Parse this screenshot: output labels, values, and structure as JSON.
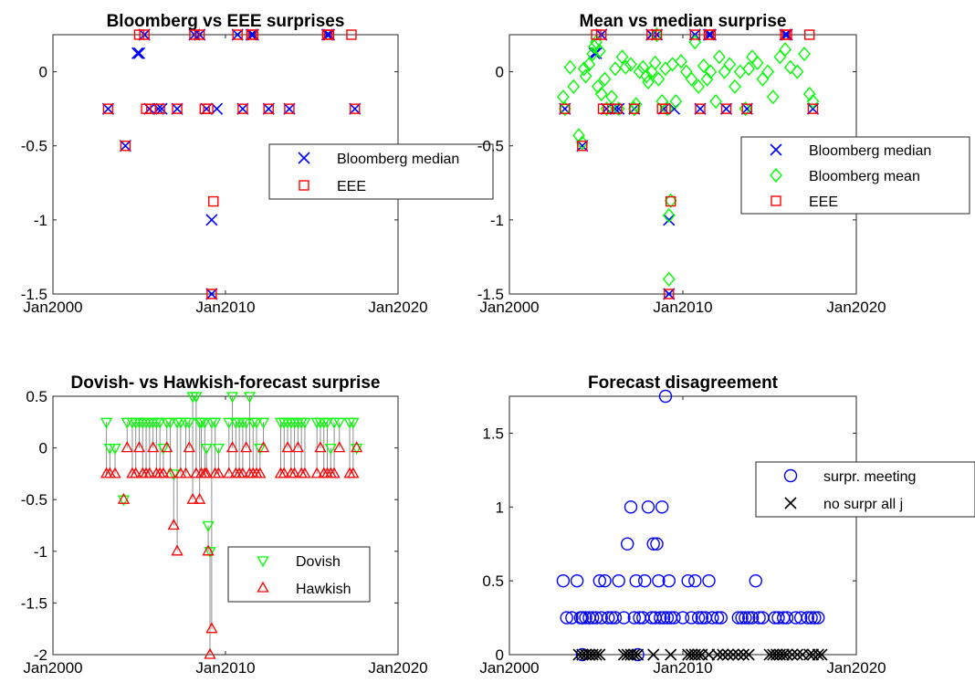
{
  "chart_data": [
    {
      "type": "scatter",
      "title": "Bloomberg vs EEE surprises",
      "xlabel": "",
      "ylabel": "",
      "xlim": [
        2000.0,
        2020.0
      ],
      "ylim": [
        -1.5,
        0.25
      ],
      "xticks": [
        2000,
        2010,
        2020
      ],
      "xtick_labels": [
        "Jan2000",
        "Jan2010",
        "Jan2020"
      ],
      "yticks": [
        -1.5,
        -1,
        -0.5,
        0
      ],
      "ytick_labels": [
        "-1.5",
        "-1",
        "-0.5",
        "0"
      ],
      "grid": false,
      "legend_position": "center-right",
      "series": [
        {
          "name": "Bloomberg median",
          "marker": "x",
          "color": "#0000ff",
          "x": [
            2003.2,
            2004.2,
            2004.9,
            2005.0,
            2005.3,
            2005.6,
            2006.1,
            2006.3,
            2007.2,
            2008.2,
            2008.5,
            2008.9,
            2009.2,
            2009.2,
            2009.5,
            2010.7,
            2011.0,
            2011.5,
            2011.6,
            2012.5,
            2013.7,
            2015.9,
            2016.0,
            2017.5
          ],
          "y": [
            -0.25,
            -0.5,
            0.125,
            0.125,
            0.25,
            -0.25,
            -0.25,
            -0.25,
            -0.25,
            0.25,
            0.25,
            -0.25,
            -1.0,
            -1.5,
            -0.25,
            0.25,
            -0.25,
            0.25,
            0.25,
            -0.25,
            -0.25,
            0.25,
            0.25,
            -0.25
          ]
        },
        {
          "name": "EEE",
          "marker": "square",
          "color": "#ff0000",
          "x": [
            2003.2,
            2004.2,
            2005.0,
            2005.3,
            2005.4,
            2005.7,
            2006.2,
            2007.2,
            2008.2,
            2008.5,
            2008.8,
            2009.0,
            2009.2,
            2009.3,
            2010.7,
            2011.0,
            2011.5,
            2011.6,
            2012.5,
            2013.7,
            2015.9,
            2016.0,
            2017.3,
            2017.5
          ],
          "y": [
            -0.25,
            -0.5,
            0.25,
            0.25,
            -0.25,
            -0.25,
            -0.25,
            -0.25,
            0.25,
            0.25,
            -0.25,
            -0.25,
            -1.5,
            -0.875,
            0.25,
            -0.25,
            0.25,
            0.25,
            -0.25,
            -0.25,
            0.25,
            0.25,
            0.25,
            -0.25
          ]
        }
      ]
    },
    {
      "type": "scatter",
      "title": "Mean vs median surprise",
      "xlabel": "",
      "ylabel": "",
      "xlim": [
        2000.0,
        2020.0
      ],
      "ylim": [
        -1.5,
        0.25
      ],
      "xticks": [
        2000,
        2010,
        2020
      ],
      "xtick_labels": [
        "Jan2000",
        "Jan2010",
        "Jan2020"
      ],
      "yticks": [
        -1.5,
        -1,
        -0.5,
        0
      ],
      "ytick_labels": [
        "-1.5",
        "-1",
        "-0.5",
        "0"
      ],
      "grid": false,
      "legend_position": "center-right",
      "series": [
        {
          "name": "Bloomberg median",
          "marker": "x",
          "color": "#0000ff",
          "x": [
            2003.2,
            2004.2,
            2004.9,
            2005.0,
            2005.3,
            2005.6,
            2006.1,
            2006.3,
            2007.2,
            2008.2,
            2008.5,
            2008.9,
            2009.2,
            2009.2,
            2009.5,
            2010.7,
            2011.0,
            2011.5,
            2011.6,
            2012.5,
            2013.7,
            2015.9,
            2016.0,
            2017.5
          ],
          "y": [
            -0.25,
            -0.5,
            0.125,
            0.125,
            0.25,
            -0.25,
            -0.25,
            -0.25,
            -0.25,
            0.25,
            0.25,
            -0.25,
            -1.0,
            -1.5,
            -0.25,
            0.25,
            -0.25,
            0.25,
            0.25,
            -0.25,
            -0.25,
            0.25,
            0.25,
            -0.25
          ]
        },
        {
          "name": "Bloomberg mean",
          "marker": "diamond",
          "color": "#00ff00",
          "x": [
            2003.1,
            2003.2,
            2003.5,
            2003.7,
            2004.0,
            2004.2,
            2004.3,
            2004.4,
            2004.6,
            2004.8,
            2004.9,
            2005.0,
            2005.1,
            2005.2,
            2005.3,
            2005.5,
            2005.6,
            2005.9,
            2006.1,
            2006.3,
            2006.5,
            2006.7,
            2007.0,
            2007.2,
            2007.3,
            2007.5,
            2007.7,
            2007.9,
            2008.0,
            2008.2,
            2008.4,
            2008.5,
            2008.6,
            2008.8,
            2009.0,
            2009.1,
            2009.2,
            2009.2,
            2009.3,
            2009.4,
            2009.6,
            2009.9,
            2010.2,
            2010.5,
            2010.7,
            2010.9,
            2011.2,
            2011.4,
            2011.6,
            2011.9,
            2012.1,
            2012.4,
            2012.7,
            2013.0,
            2013.3,
            2013.6,
            2013.8,
            2014.0,
            2014.3,
            2014.6,
            2014.9,
            2015.2,
            2015.6,
            2015.9,
            2016.2,
            2016.6,
            2017.0,
            2017.3,
            2017.5
          ],
          "y": [
            -0.17,
            -0.25,
            0.03,
            -0.1,
            -0.43,
            -0.48,
            0.02,
            -0.03,
            0.05,
            0.12,
            0.17,
            0.2,
            -0.1,
            0.14,
            -0.15,
            -0.05,
            -0.25,
            -0.17,
            0.02,
            -0.25,
            0.1,
            0.03,
            0.05,
            -0.25,
            -0.22,
            0.0,
            0.03,
            -0.03,
            -0.07,
            0.0,
            0.06,
            0.25,
            -0.05,
            -0.2,
            0.02,
            -0.25,
            -1.4,
            -0.97,
            -0.87,
            0.05,
            -0.2,
            0.07,
            0.0,
            -0.05,
            0.2,
            -0.1,
            0.04,
            -0.05,
            0.0,
            -0.2,
            0.1,
            0.0,
            0.05,
            -0.1,
            0.0,
            -0.25,
            0.02,
            0.1,
            0.06,
            -0.05,
            0.0,
            -0.17,
            0.1,
            0.15,
            0.03,
            0.0,
            0.12,
            -0.15,
            -0.2
          ]
        },
        {
          "name": "EEE",
          "marker": "square",
          "color": "#ff0000",
          "x": [
            2003.2,
            2004.2,
            2005.0,
            2005.3,
            2005.4,
            2005.7,
            2006.2,
            2007.2,
            2008.2,
            2008.5,
            2008.8,
            2009.0,
            2009.2,
            2009.3,
            2010.7,
            2011.0,
            2011.5,
            2011.6,
            2012.5,
            2013.7,
            2015.9,
            2016.0,
            2017.3,
            2017.5
          ],
          "y": [
            -0.25,
            -0.5,
            0.25,
            0.25,
            -0.25,
            -0.25,
            -0.25,
            -0.25,
            0.25,
            0.25,
            -0.25,
            -0.25,
            -1.5,
            -0.875,
            0.25,
            -0.25,
            0.25,
            0.25,
            -0.25,
            -0.25,
            0.25,
            0.25,
            0.25,
            -0.25
          ]
        }
      ]
    },
    {
      "type": "scatter",
      "title": "Dovish- vs Hawkish-forecast surprise",
      "xlabel": "",
      "ylabel": "",
      "xlim": [
        2000.0,
        2020.0
      ],
      "ylim": [
        -2.0,
        0.5
      ],
      "xticks": [
        2000,
        2010,
        2020
      ],
      "xtick_labels": [
        "Jan2000",
        "Jan2010",
        "Jan2020"
      ],
      "yticks": [
        -2,
        -1.5,
        -1,
        -0.5,
        0,
        0.5
      ],
      "ytick_labels": [
        "-2",
        "-1.5",
        "-1",
        "-0.5",
        "0",
        "0.5"
      ],
      "grid": false,
      "legend_position": "lower-right",
      "connectors": true,
      "x": [
        2003.1,
        2003.3,
        2003.6,
        2004.1,
        2004.3,
        2004.6,
        2004.8,
        2005.0,
        2005.2,
        2005.4,
        2005.6,
        2005.8,
        2006.0,
        2006.2,
        2006.4,
        2006.6,
        2006.8,
        2007.0,
        2007.2,
        2007.4,
        2007.7,
        2007.9,
        2008.1,
        2008.3,
        2008.5,
        2008.6,
        2008.8,
        2008.9,
        2009.0,
        2009.1,
        2009.2,
        2009.4,
        2009.6,
        2010.2,
        2010.4,
        2010.6,
        2010.8,
        2011.0,
        2011.2,
        2011.4,
        2011.6,
        2011.8,
        2012.0,
        2012.2,
        2013.2,
        2013.4,
        2013.6,
        2013.8,
        2014.0,
        2014.2,
        2014.4,
        2014.6,
        2015.3,
        2015.5,
        2015.7,
        2015.9,
        2016.1,
        2016.3,
        2016.6,
        2017.2,
        2017.4,
        2017.6
      ],
      "series": [
        {
          "name": "Dovish",
          "marker": "triangle-down",
          "color": "#00ff00",
          "y": [
            0.25,
            0.0,
            0.0,
            -0.5,
            0.25,
            0.25,
            0.25,
            0.25,
            0.25,
            0.25,
            0.25,
            0.25,
            0.25,
            0.25,
            0.0,
            0.25,
            0.25,
            -0.25,
            0.25,
            0.25,
            0.25,
            0.25,
            0.5,
            0.5,
            0.25,
            0.25,
            0.25,
            0.0,
            -0.75,
            -1.0,
            0.25,
            0.25,
            0.0,
            0.25,
            0.5,
            0.25,
            0.25,
            0.25,
            0.25,
            0.5,
            0.25,
            0.25,
            0.0,
            0.25,
            0.25,
            0.25,
            0.25,
            0.25,
            0.25,
            0.25,
            0.25,
            0.25,
            0.25,
            0.25,
            0.25,
            0.25,
            0.0,
            0.25,
            0.25,
            0.25,
            0.25,
            0.0
          ]
        },
        {
          "name": "Hawkish",
          "marker": "triangle-up",
          "color": "#ff0000",
          "y": [
            -0.25,
            -0.25,
            -0.25,
            -0.5,
            0.0,
            -0.25,
            -0.25,
            0.0,
            -0.25,
            -0.25,
            -0.25,
            0.0,
            -0.25,
            -0.25,
            -0.25,
            0.0,
            -0.25,
            -0.75,
            -1.0,
            -0.25,
            -0.25,
            0.0,
            -0.5,
            -0.25,
            -0.5,
            -0.25,
            -0.25,
            -0.25,
            -1.0,
            -2.0,
            -1.75,
            -0.25,
            -0.25,
            -0.25,
            0.0,
            -0.25,
            -0.25,
            -0.25,
            0.0,
            -0.25,
            -0.25,
            -0.25,
            -0.25,
            0.0,
            -0.25,
            -0.25,
            0.0,
            -0.25,
            -0.25,
            0.0,
            -0.25,
            -0.25,
            -0.25,
            0.0,
            -0.25,
            -0.25,
            -0.25,
            -0.25,
            0.0,
            -0.25,
            -0.25,
            0.0
          ]
        }
      ]
    },
    {
      "type": "scatter",
      "title": "Forecast disagreement",
      "xlabel": "",
      "ylabel": "",
      "xlim": [
        2000.0,
        2020.0
      ],
      "ylim": [
        0.0,
        1.75
      ],
      "xticks": [
        2000,
        2010,
        2020
      ],
      "xtick_labels": [
        "Jan2000",
        "Jan2010",
        "Jan2020"
      ],
      "yticks": [
        0,
        0.5,
        1,
        1.5
      ],
      "ytick_labels": [
        "0",
        "0.5",
        "1",
        "1.5"
      ],
      "grid": false,
      "legend_position": "top-right",
      "series": [
        {
          "name": "surpr. meeting",
          "marker": "circle",
          "color": "#0000ff",
          "x": [
            2003.1,
            2003.3,
            2003.6,
            2003.9,
            2004.1,
            2004.2,
            2004.4,
            2004.6,
            2004.8,
            2005.0,
            2005.2,
            2005.3,
            2005.5,
            2005.7,
            2005.9,
            2006.1,
            2006.3,
            2006.6,
            2006.8,
            2007.0,
            2007.2,
            2007.3,
            2007.5,
            2007.7,
            2007.8,
            2008.0,
            2008.2,
            2008.3,
            2008.4,
            2008.5,
            2008.6,
            2008.7,
            2008.8,
            2008.9,
            2009.0,
            2009.1,
            2009.2,
            2009.3,
            2009.5,
            2010.0,
            2010.3,
            2010.5,
            2010.7,
            2010.9,
            2011.1,
            2011.3,
            2011.5,
            2011.7,
            2012.0,
            2012.2,
            2013.2,
            2013.4,
            2013.6,
            2013.8,
            2014.0,
            2014.2,
            2014.4,
            2014.6,
            2015.3,
            2015.5,
            2015.8,
            2016.0,
            2016.5,
            2016.8,
            2017.2,
            2017.4,
            2017.6,
            2017.8,
            2004.2,
            2007.4
          ],
          "y": [
            0.5,
            0.25,
            0.25,
            0.5,
            0.25,
            0.25,
            0.25,
            0.25,
            0.25,
            0.25,
            0.5,
            0.25,
            0.5,
            0.25,
            0.25,
            0.25,
            0.5,
            0.25,
            0.75,
            1.0,
            0.25,
            0.5,
            0.25,
            0.25,
            0.5,
            1.0,
            0.25,
            0.75,
            0.25,
            0.75,
            0.5,
            0.25,
            1.0,
            0.25,
            1.75,
            0.25,
            0.5,
            0.25,
            0.25,
            0.25,
            0.5,
            0.25,
            0.5,
            0.25,
            0.25,
            0.25,
            0.5,
            0.25,
            0.25,
            0.25,
            0.25,
            0.25,
            0.25,
            0.25,
            0.25,
            0.5,
            0.25,
            0.25,
            0.25,
            0.25,
            0.25,
            0.25,
            0.25,
            0.25,
            0.25,
            0.25,
            0.25,
            0.25,
            0.0,
            0.0
          ]
        },
        {
          "name": "no surpr all j",
          "marker": "x",
          "color": "#000000",
          "x": [
            2004.0,
            2004.2,
            2004.4,
            2004.6,
            2004.8,
            2005.0,
            2005.2,
            2006.6,
            2006.8,
            2007.0,
            2007.2,
            2007.4,
            2008.3,
            2009.3,
            2010.3,
            2010.5,
            2010.7,
            2010.9,
            2011.1,
            2011.5,
            2012.0,
            2012.3,
            2012.6,
            2012.9,
            2013.2,
            2013.5,
            2013.8,
            2015.0,
            2015.2,
            2015.4,
            2015.6,
            2015.8,
            2016.0,
            2016.3,
            2016.6,
            2016.9,
            2017.3,
            2017.5,
            2017.8,
            2018.0
          ],
          "y": [
            0,
            0,
            0,
            0,
            0,
            0,
            0,
            0,
            0,
            0,
            0,
            0,
            0,
            0,
            0,
            0,
            0,
            0,
            0,
            0,
            0,
            0,
            0,
            0,
            0,
            0,
            0,
            0,
            0,
            0,
            0,
            0,
            0,
            0,
            0,
            0,
            0,
            0,
            0,
            0
          ]
        }
      ]
    }
  ]
}
